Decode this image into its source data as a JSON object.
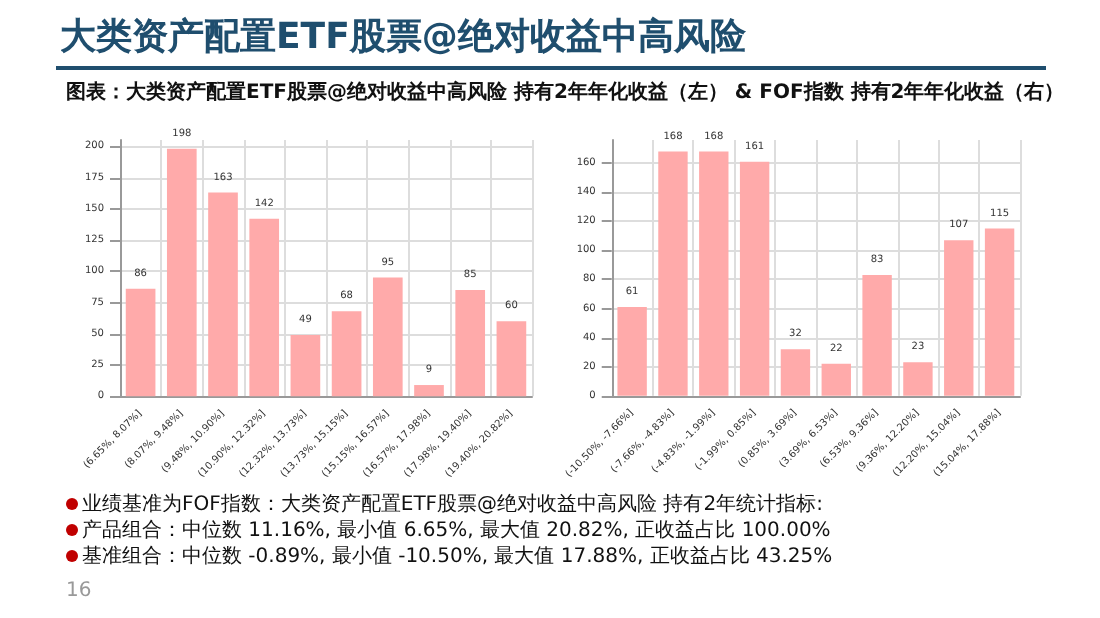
{
  "chart_data": [
    {
      "type": "other",
      "title": "大类资产配置ETF股票@绝对收益中高风险",
      "subtitle": "图表：大类资产配置ETF股票@绝对收益中高风险 持有2年年化收益（左） & FOF指数 持有2年年化收益（右）",
      "annotations": [
        "业绩基准为FOF指数：大类资产配置ETF股票@绝对收益中高风险 持有2年统计指标:",
        "产品组合：中位数 11.16%, 最小值 6.65%, 最大值 20.82%, 正收益占比 100.00%",
        "基准组合：中位数 -0.89%, 最小值 -10.50%, 最大值 17.88%, 正收益占比 43.25%",
        "16"
      ]
    },
    {
      "type": "bar",
      "categories": [
        "(6.65%, 8.07%]",
        "(8.07%, 9.48%]",
        "(9.48%, 10.90%]",
        "(10.90%, 12.32%]",
        "(12.32%, 13.73%]",
        "(13.73%, 15.15%]",
        "(15.15%, 16.57%]",
        "(16.57%, 17.98%]",
        "(17.98%, 19.40%]",
        "(19.40%, 20.82%]"
      ],
      "values": [
        86,
        198,
        163,
        142,
        49,
        68,
        95,
        9,
        85,
        60
      ],
      "color": "#ffaaaa",
      "ylim": [
        0,
        205
      ],
      "yticks": [
        0,
        25,
        50,
        75,
        100,
        125,
        150,
        175,
        200
      ],
      "grid": true,
      "data_labels": true
    },
    {
      "type": "bar",
      "categories": [
        "(-10.50%, -7.66%]",
        "(-7.66%, -4.83%]",
        "(-4.83%, -1.99%]",
        "(-1.99%, 0.85%]",
        "(0.85%, 3.69%]",
        "(3.69%, 6.53%]",
        "(6.53%, 9.36%]",
        "(9.36%, 12.20%]",
        "(12.20%, 15.04%]",
        "(15.04%, 17.88%]"
      ],
      "values": [
        61,
        168,
        168,
        161,
        32,
        22,
        83,
        23,
        107,
        115
      ],
      "color": "#ffaaaa",
      "ylim": [
        0,
        176
      ],
      "yticks": [
        0,
        20,
        40,
        60,
        80,
        100,
        120,
        140,
        160
      ],
      "grid": true,
      "data_labels": true
    }
  ]
}
